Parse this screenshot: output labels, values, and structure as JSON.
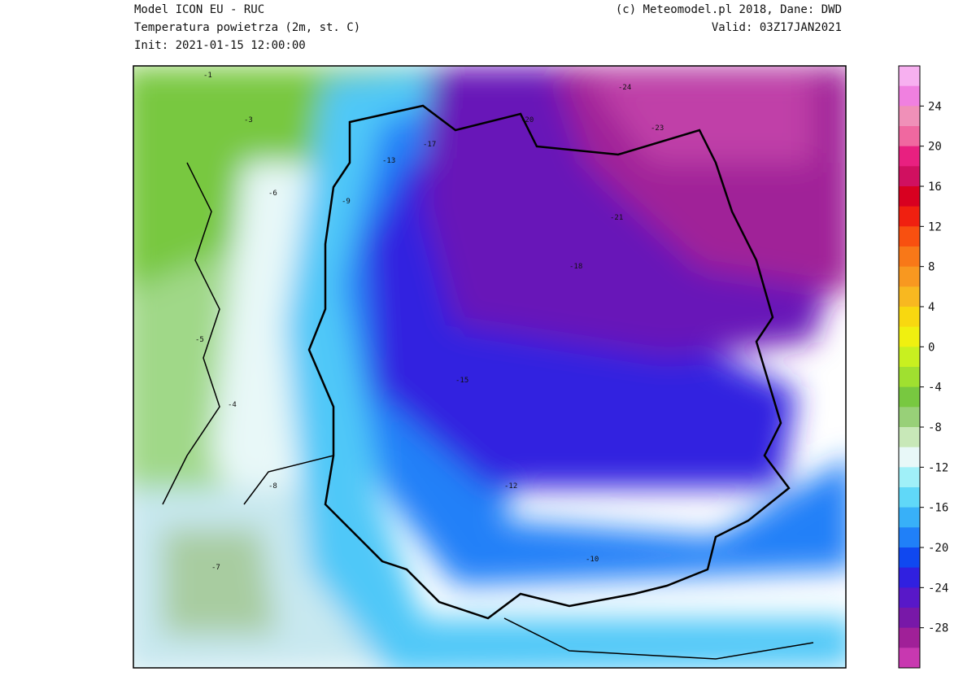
{
  "header": {
    "left": [
      "Model ICON EU - RUC",
      "Temperatura powietrza (2m, st. C)",
      "Init: 2021-01-15 12:00:00"
    ],
    "right": [
      "(c) Meteomodel.pl 2018, Dane: DWD",
      "Valid: 03Z17JAN2021"
    ]
  },
  "colorbar": {
    "range": [
      -32,
      28
    ],
    "ticks": [
      24,
      20,
      16,
      12,
      8,
      4,
      0,
      -4,
      -8,
      -12,
      -16,
      -20,
      -24,
      -28
    ],
    "colors": [
      "#f7b0f0",
      "#f080e0",
      "#f090b8",
      "#f068a0",
      "#e82080",
      "#d01060",
      "#d80020",
      "#f02010",
      "#f85010",
      "#f87818",
      "#f89820",
      "#f8b820",
      "#f8d810",
      "#f0f010",
      "#c8f020",
      "#a0e030",
      "#78c840",
      "#98d078",
      "#c8e8b8",
      "#e8f8f8",
      "#a0f0f8",
      "#60d8f8",
      "#38b0f8",
      "#2080f8",
      "#1048f0",
      "#3020e0",
      "#5818c8",
      "#7818a8",
      "#a02098",
      "#c838b0"
    ]
  },
  "contour_labels": [
    "-1",
    "-3",
    "-6",
    "-9",
    "-13",
    "-17",
    "-20",
    "-23",
    "-24",
    "-21",
    "-18",
    "-15",
    "-12",
    "-10",
    "-8",
    "-5",
    "-4",
    "-7"
  ]
}
